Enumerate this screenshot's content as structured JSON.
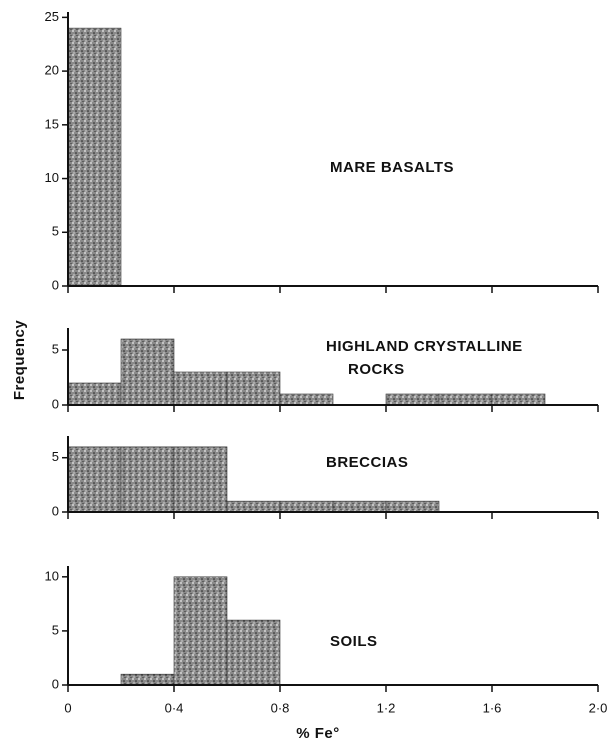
{
  "chart_data": [
    {
      "type": "histogram",
      "title_lines": [
        "MARE BASALTS"
      ],
      "bins": [
        0,
        0.2
      ],
      "counts": [
        24
      ],
      "xlim": [
        0,
        2.0
      ],
      "xticks": [
        0,
        0.4,
        0.8,
        1.2,
        1.6,
        2.0
      ],
      "ylim": [
        0,
        25.5
      ],
      "yticks": [
        0,
        5,
        10,
        15,
        20,
        25
      ]
    },
    {
      "type": "histogram",
      "title_lines": [
        "HIGHLAND CRYSTALLINE",
        "ROCKS"
      ],
      "ylabel": "Frequency",
      "bins": [
        0,
        0.2,
        0.4,
        0.6,
        0.8,
        1.0,
        1.2,
        1.4,
        1.6,
        1.8
      ],
      "counts": [
        2,
        6,
        3,
        3,
        1,
        0,
        1,
        1,
        1
      ],
      "xlim": [
        0,
        2.0
      ],
      "xticks": [
        0,
        0.4,
        0.8,
        1.2,
        1.6,
        2.0
      ],
      "ylim": [
        0,
        7
      ],
      "yticks": [
        0,
        5
      ]
    },
    {
      "type": "histogram",
      "title_lines": [
        "BRECCIAS"
      ],
      "bins": [
        0,
        0.2,
        0.4,
        0.6,
        0.8,
        1.0,
        1.2,
        1.4
      ],
      "counts": [
        6,
        6,
        6,
        1,
        1,
        1,
        1
      ],
      "xlim": [
        0,
        2.0
      ],
      "xticks": [
        0,
        0.4,
        0.8,
        1.2,
        1.6,
        2.0
      ],
      "ylim": [
        0,
        7
      ],
      "yticks": [
        0,
        5
      ]
    },
    {
      "type": "histogram",
      "title_lines": [
        "SOILS"
      ],
      "xlabel": "% Fe°",
      "bins": [
        0.2,
        0.4,
        0.6,
        0.8
      ],
      "counts": [
        1,
        10,
        6
      ],
      "xlim": [
        0,
        2.0
      ],
      "xticks": [
        0,
        {
          "value": 0.4,
          "label": "0·4"
        },
        {
          "value": 0.8,
          "label": "0·8"
        },
        {
          "value": 1.2,
          "label": "1·2"
        },
        {
          "value": 1.6,
          "label": "1·6"
        },
        {
          "value": 2.0,
          "label": "2·0"
        }
      ],
      "ylim": [
        0,
        11
      ],
      "yticks": [
        0,
        5,
        10
      ]
    }
  ]
}
